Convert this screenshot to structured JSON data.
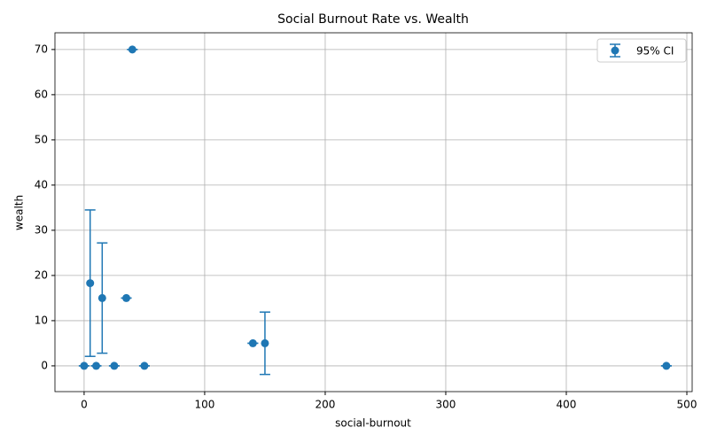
{
  "chart_data": {
    "type": "scatter",
    "title": "Social Burnout Rate vs. Wealth",
    "x_label": "social-burnout",
    "y_label": "wealth",
    "x": [
      0,
      5,
      10,
      15,
      25,
      35,
      40,
      50,
      140,
      150,
      483
    ],
    "series": [
      {
        "name": "95% CI",
        "color": "#1f77b4",
        "values": [
          0,
          18.3,
          0,
          15,
          0,
          15,
          70,
          0,
          5,
          5,
          0
        ],
        "errors": [
          0,
          16.2,
          0,
          12.2,
          0,
          0,
          0,
          0,
          0,
          6.9,
          0
        ]
      }
    ],
    "xlim": [
      -24.2,
      504.4
    ],
    "ylim": [
      -5.7,
      73.7
    ],
    "xticks": [
      0,
      100,
      200,
      300,
      400,
      500
    ],
    "yticks": [
      0,
      10,
      20,
      30,
      40,
      50,
      60,
      70
    ],
    "grid": true,
    "legend": "upper right"
  }
}
